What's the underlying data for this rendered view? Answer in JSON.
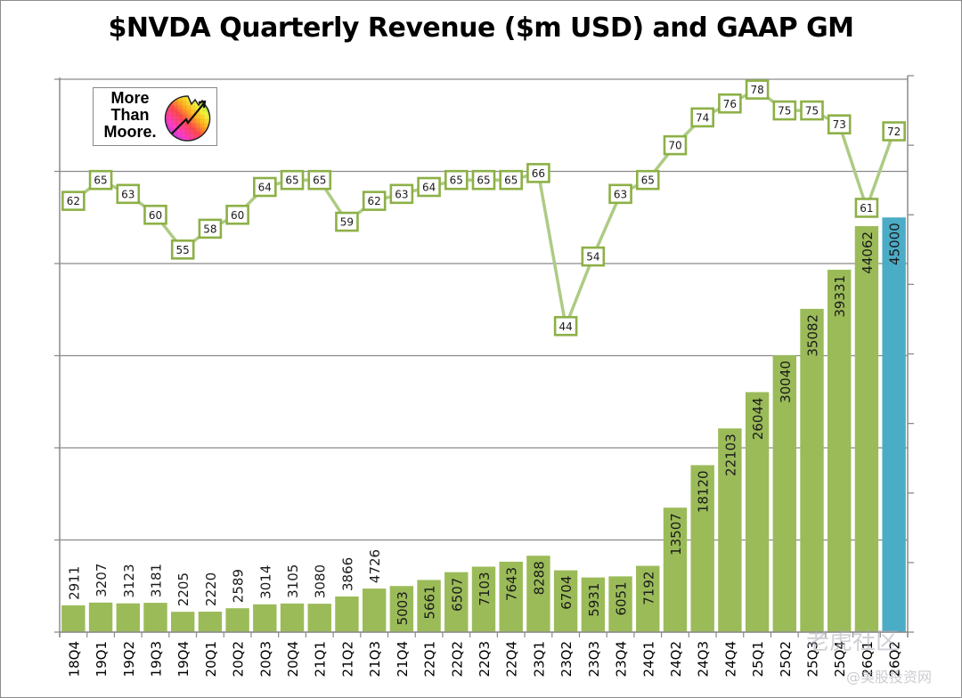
{
  "chart_data": {
    "type": "bar",
    "title": "$NVDA Quarterly Revenue ($m USD) and GAAP GM",
    "xlabel": "",
    "ylabel": "",
    "categories": [
      "18Q4",
      "19Q1",
      "19Q2",
      "19Q3",
      "19Q4",
      "20Q1",
      "20Q2",
      "20Q3",
      "20Q4",
      "21Q1",
      "21Q2",
      "21Q3",
      "21Q4",
      "22Q1",
      "22Q2",
      "22Q3",
      "22Q4",
      "23Q1",
      "23Q2",
      "23Q3",
      "23Q4",
      "24Q1",
      "24Q2",
      "24Q3",
      "24Q4",
      "25Q1",
      "25Q2",
      "25Q3",
      "25Q4",
      "26Q1",
      "26Q2"
    ],
    "series": [
      {
        "name": "Quarterly Revenue ($m USD)",
        "type": "bar",
        "axis": "left",
        "color": "#9bbb59",
        "highlight_color": "#4bacc6",
        "highlight_last": true,
        "values": [
          2911,
          3207,
          3123,
          3181,
          2205,
          2220,
          2589,
          3014,
          3105,
          3080,
          3866,
          4726,
          5003,
          5661,
          6507,
          7103,
          7643,
          8288,
          6704,
          5931,
          6051,
          7192,
          13507,
          18120,
          22103,
          26044,
          30040,
          35082,
          39331,
          44062,
          45000
        ]
      },
      {
        "name": "GAAP GM (%)",
        "type": "line",
        "axis": "right",
        "color": "#aecb84",
        "marker_border": "#8db047",
        "values": [
          62,
          65,
          63,
          60,
          55,
          58,
          60,
          64,
          65,
          65,
          59,
          62,
          63,
          64,
          65,
          65,
          65,
          66,
          44,
          54,
          63,
          65,
          70,
          74,
          76,
          78,
          75,
          75,
          73,
          61,
          72
        ]
      }
    ],
    "ylim_left": [
      0,
      60000
    ],
    "ylim_right": [
      0,
      80
    ],
    "left_gridline_step": 10000,
    "right_tick_step": 10,
    "grid": true,
    "tick_labels_shown": false,
    "legend": "none"
  },
  "logo": {
    "lines": [
      "More",
      "Than",
      "Moore."
    ]
  },
  "watermark": {
    "line1": "老虎社区",
    "line2": "@美股投资网"
  }
}
